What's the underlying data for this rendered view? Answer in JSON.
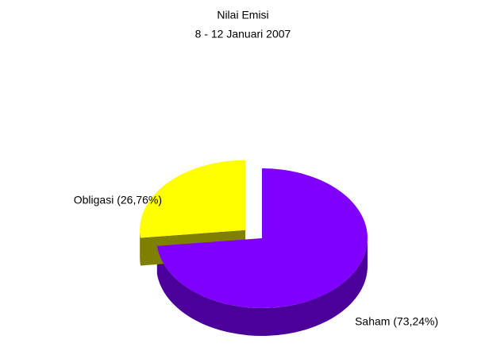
{
  "chart_data": {
    "type": "pie",
    "title": "Nilai Emisi",
    "subtitle": "8 - 12 Januari 2007",
    "categories": [
      "Saham",
      "Obligasi"
    ],
    "values": [
      73.24,
      26.76
    ],
    "value_labels": [
      "Saham (73,24%)",
      "Obligasi (26,76%)"
    ],
    "colors": [
      "#7f00ff",
      "#ffff00"
    ],
    "side_colors": [
      "#4a0099",
      "#808000"
    ]
  }
}
